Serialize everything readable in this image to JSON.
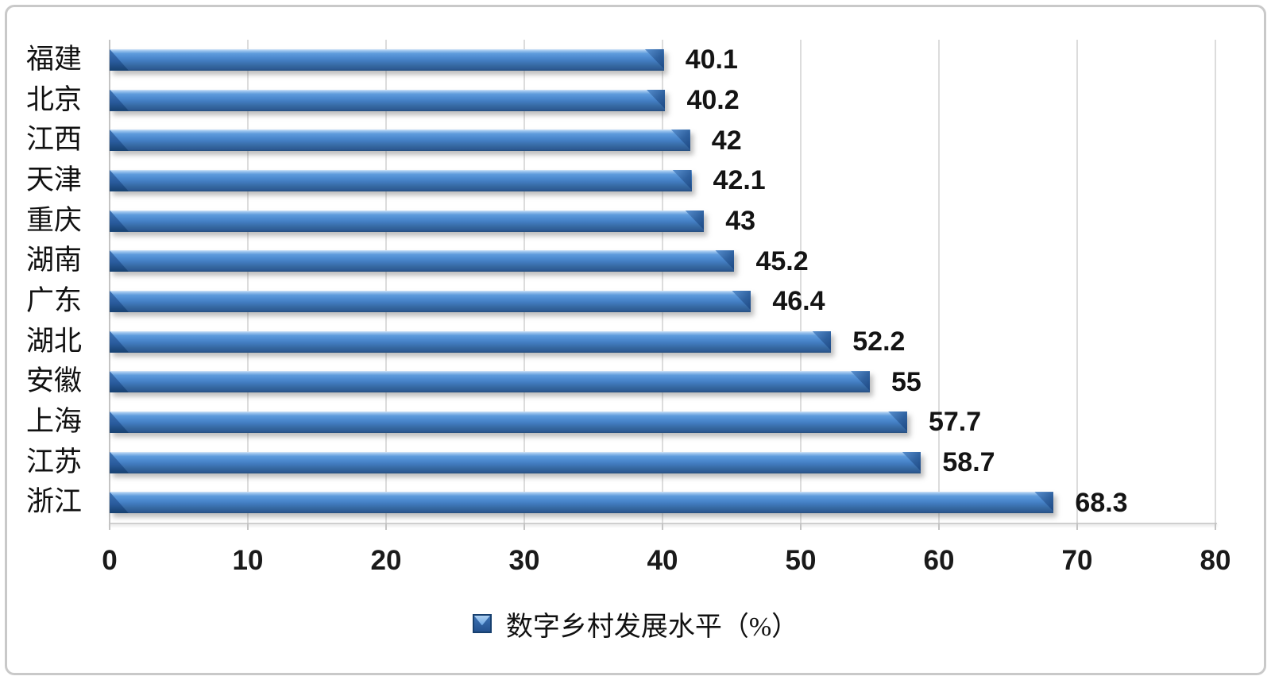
{
  "chart_data": {
    "type": "bar",
    "orientation": "horizontal",
    "title": "",
    "xlabel": "",
    "ylabel": "",
    "categories": [
      "福建",
      "北京",
      "江西",
      "天津",
      "重庆",
      "湖南",
      "广东",
      "湖北",
      "安徽",
      "上海",
      "江苏",
      "浙江"
    ],
    "values": [
      40.1,
      40.2,
      42,
      42.1,
      43,
      45.2,
      46.4,
      52.2,
      55,
      57.7,
      58.7,
      68.3
    ],
    "value_labels": [
      "40.1",
      "40.2",
      "42",
      "42.1",
      "43",
      "45.2",
      "46.4",
      "52.2",
      "55",
      "57.7",
      "58.7",
      "68.3"
    ],
    "xlim": [
      0,
      80
    ],
    "x_ticks": [
      0,
      10,
      20,
      30,
      40,
      50,
      60,
      70,
      80
    ],
    "x_tick_labels": [
      "0",
      "10",
      "20",
      "30",
      "40",
      "50",
      "60",
      "70",
      "80"
    ],
    "grid": true,
    "legend_position": "bottom",
    "legend": {
      "label": "数字乡村发展水平（%）"
    },
    "colors": {
      "bar_fill": "#4a87cd",
      "bar_highlight": "#d3e5f8",
      "bar_shadow_edge": "#27507e",
      "gridline": "#dcdcdc",
      "axis_line": "#c4c4c4",
      "text": "#141414",
      "frame_border": "#c9c9c9",
      "legend_marker": "#24528f"
    }
  }
}
